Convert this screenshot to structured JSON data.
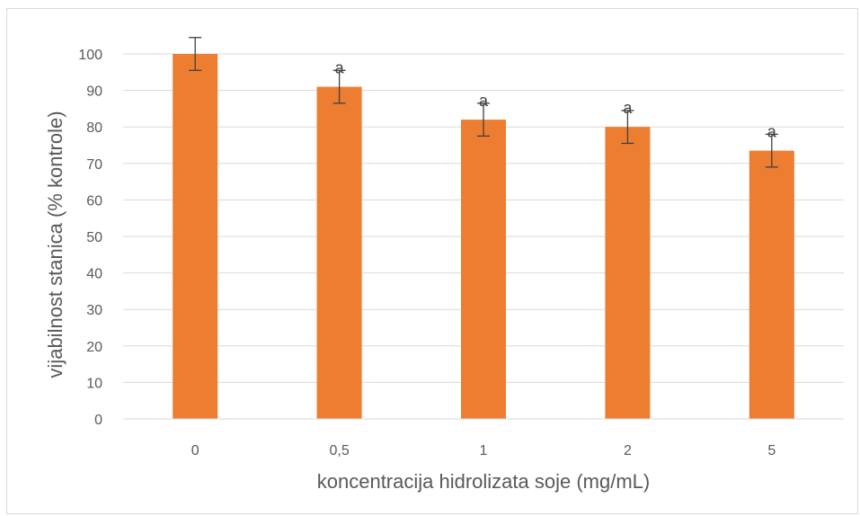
{
  "chart_data": {
    "type": "bar",
    "title": "",
    "xlabel": "koncentracija hidrolizata soje (mg/mL)",
    "ylabel": "vijabilnost stanica (% kontrole)",
    "categories": [
      "0",
      "0,5",
      "1",
      "2",
      "5"
    ],
    "values": [
      100,
      91,
      82,
      80,
      73.5
    ],
    "error": [
      4.5,
      4.5,
      4.5,
      4.5,
      4.5
    ],
    "annotations": [
      "",
      "a",
      "a",
      "a",
      "a"
    ],
    "ylim": [
      0,
      100
    ],
    "yticks": [
      "0",
      "10",
      "20",
      "30",
      "40",
      "50",
      "60",
      "70",
      "80",
      "90",
      "100"
    ],
    "grid": true,
    "legend": "none",
    "colors": {
      "bar": "#ED7D31",
      "grid": "#D9D9D9",
      "error_bar": "#404040",
      "axis_line": "#D9D9D9"
    }
  }
}
